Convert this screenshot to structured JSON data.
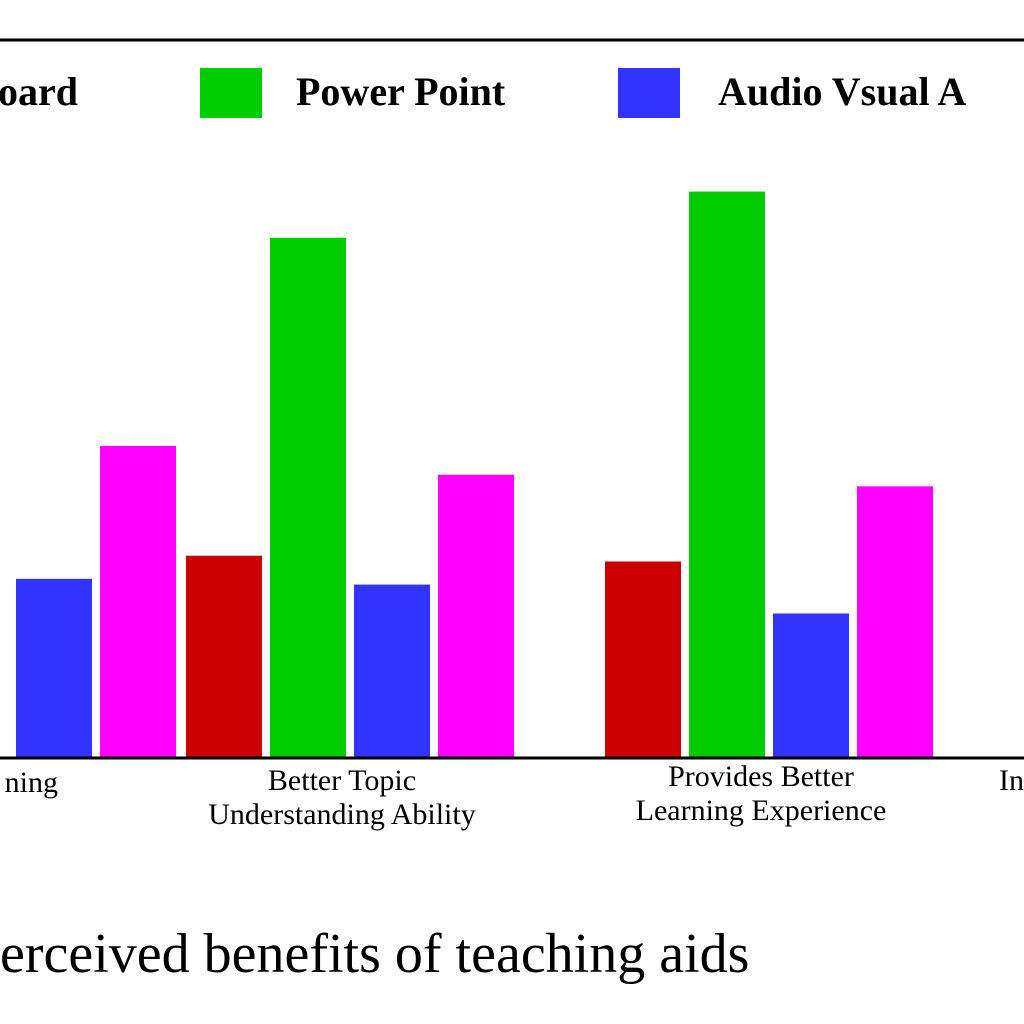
{
  "caption": "erceived benefits of teaching aids",
  "chart_data": {
    "type": "bar",
    "title": "",
    "xlabel": "",
    "ylabel": "",
    "legend_position": "top",
    "grid": false,
    "ylim": [
      0,
      100
    ],
    "categories": [
      [
        "ning"
      ],
      [
        "Better Topic",
        "Understanding Ability"
      ],
      [
        "Provides Better",
        "Learning Experience"
      ],
      [
        "In"
      ]
    ],
    "series": [
      {
        "name": "oard",
        "color": "#cc0000",
        "values": [
          null,
          35,
          34,
          null
        ]
      },
      {
        "name": "Power Point",
        "color": "#00cc00",
        "values": [
          null,
          90,
          98,
          null
        ]
      },
      {
        "name": "Audio Vsual A",
        "color": "#3333ff",
        "values": [
          31,
          30,
          25,
          null
        ]
      },
      {
        "name": "",
        "color": "#ff00ff",
        "values": [
          54,
          49,
          47,
          null
        ]
      }
    ]
  }
}
